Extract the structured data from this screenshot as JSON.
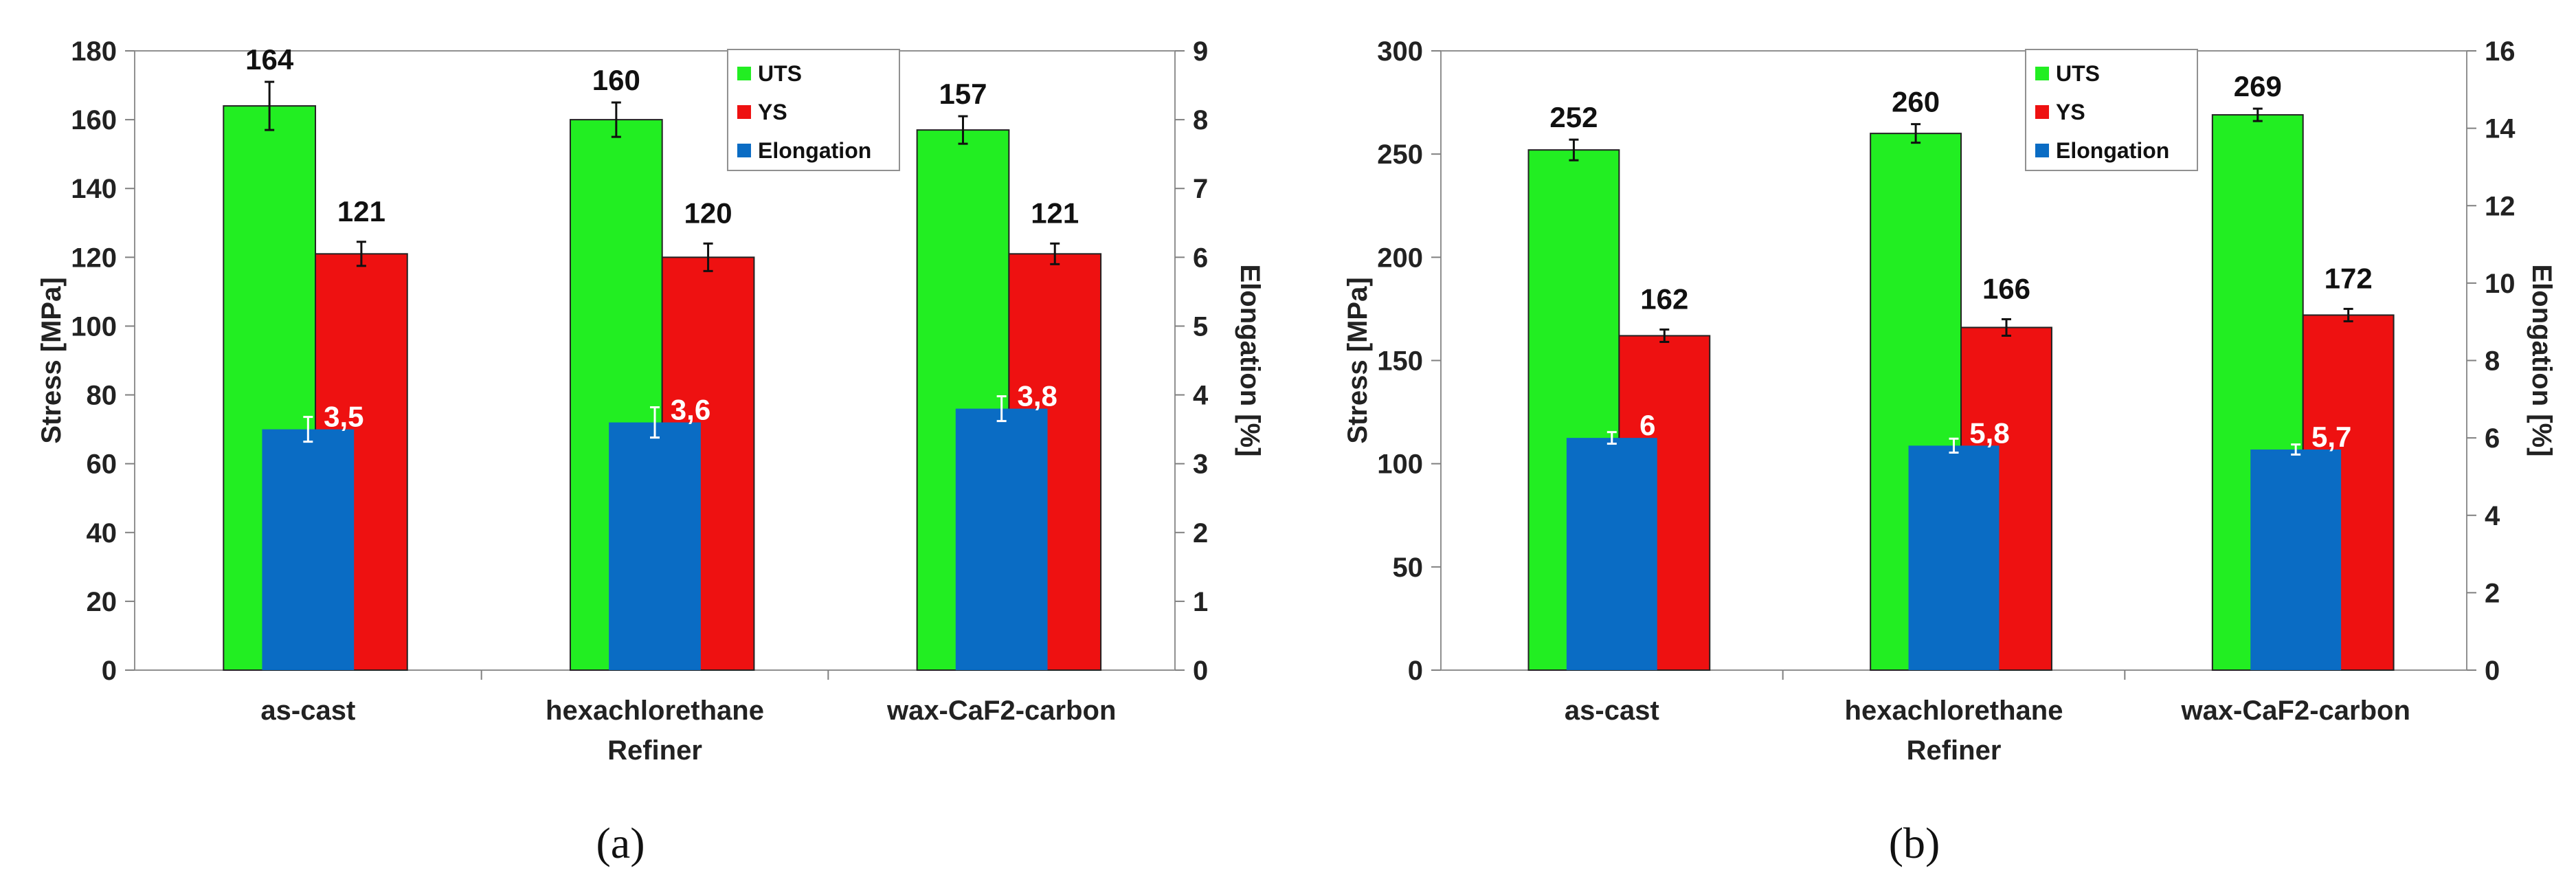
{
  "chart_data": [
    {
      "type": "bar",
      "caption": "(a)",
      "categories": [
        "as-cast",
        "hexachlorethane",
        "wax-CaF2-carbon"
      ],
      "xlabel": "Refiner",
      "ylabel": "Stress [MPa]",
      "y2label": "Elongation [%]",
      "ylim": [
        0,
        180
      ],
      "yticks": [
        0,
        20,
        40,
        60,
        80,
        100,
        120,
        140,
        160,
        180
      ],
      "y2lim": [
        0,
        9
      ],
      "y2ticks": [
        0,
        1,
        2,
        3,
        4,
        5,
        6,
        7,
        8,
        9
      ],
      "legend": [
        "UTS",
        "YS",
        "Elongation"
      ],
      "legend_position": "top-right",
      "series": [
        {
          "name": "UTS",
          "axis": "left",
          "color": "#22ee22",
          "values": [
            164,
            160,
            157
          ],
          "labels": [
            "164",
            "160",
            "157"
          ],
          "errors": [
            7,
            5,
            4
          ]
        },
        {
          "name": "YS",
          "axis": "left",
          "color": "#ee1111",
          "values": [
            121,
            120,
            121
          ],
          "labels": [
            "121",
            "120",
            "121"
          ],
          "errors": [
            3.5,
            4,
            3
          ]
        },
        {
          "name": "Elongation",
          "axis": "right",
          "color": "#0a6cc4",
          "values": [
            3.5,
            3.6,
            3.8
          ],
          "labels": [
            "3,5",
            "3,6",
            "3,8"
          ],
          "errors": [
            0.18,
            0.22,
            0.18
          ]
        }
      ]
    },
    {
      "type": "bar",
      "caption": "(b)",
      "categories": [
        "as-cast",
        "hexachlorethane",
        "wax-CaF2-carbon"
      ],
      "xlabel": "Refiner",
      "ylabel": "Stress [MPa]",
      "y2label": "Elongation [%]",
      "ylim": [
        0,
        300
      ],
      "yticks": [
        0,
        50,
        100,
        150,
        200,
        250,
        300
      ],
      "y2lim": [
        0,
        16
      ],
      "y2ticks": [
        0,
        2,
        4,
        6,
        8,
        10,
        12,
        14,
        16
      ],
      "legend": [
        "UTS",
        "YS",
        "Elongation"
      ],
      "legend_position": "top-right",
      "series": [
        {
          "name": "UTS",
          "axis": "left",
          "color": "#22ee22",
          "values": [
            252,
            260,
            269
          ],
          "labels": [
            "252",
            "260",
            "269"
          ],
          "errors": [
            5,
            4.5,
            3
          ]
        },
        {
          "name": "YS",
          "axis": "left",
          "color": "#ee1111",
          "values": [
            162,
            166,
            172
          ],
          "labels": [
            "162",
            "166",
            "172"
          ],
          "errors": [
            3,
            4,
            3
          ]
        },
        {
          "name": "Elongation",
          "axis": "right",
          "color": "#0a6cc4",
          "values": [
            6,
            5.8,
            5.7
          ],
          "labels": [
            "6",
            "5,8",
            "5,7"
          ],
          "errors": [
            0.15,
            0.18,
            0.13
          ]
        }
      ]
    }
  ]
}
